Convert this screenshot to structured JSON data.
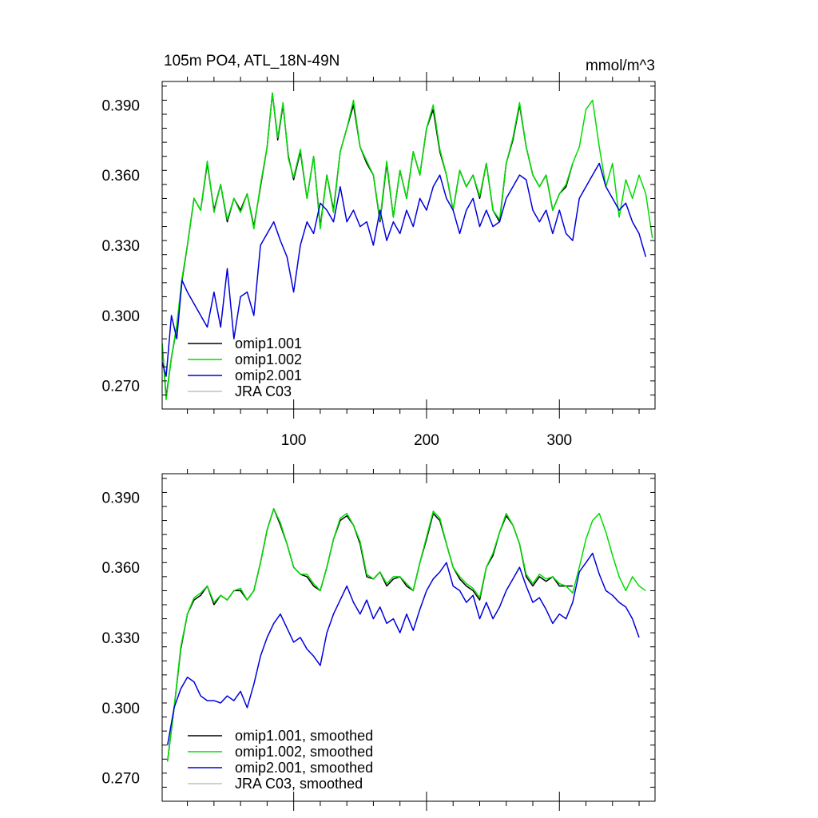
{
  "chart_data": [
    {
      "type": "line",
      "title_left": "105m PO4, ATL_18N-49N",
      "title_right": "mmol/m^3",
      "xlabel": "",
      "ylabel": "",
      "xlim": [
        1,
        372
      ],
      "ylim": [
        0.26,
        0.4
      ],
      "x_ticks": [
        100,
        200,
        300
      ],
      "x_tick_labels": [
        "100",
        "200",
        "300"
      ],
      "y_ticks": [
        0.27,
        0.3,
        0.33,
        0.36,
        0.39
      ],
      "y_tick_labels": [
        "0.270",
        "0.300",
        "0.330",
        "0.360",
        "0.390"
      ],
      "grid": false,
      "legend_position": "bottom-left",
      "series": [
        {
          "name": "omip1.001",
          "color": "#000000",
          "x": [
            1,
            4,
            8,
            12,
            16,
            20,
            25,
            30,
            35,
            40,
            45,
            50,
            55,
            60,
            65,
            70,
            75,
            80,
            84,
            88,
            92,
            96,
            100,
            105,
            110,
            115,
            120,
            125,
            130,
            135,
            140,
            145,
            150,
            155,
            160,
            165,
            170,
            175,
            180,
            185,
            190,
            195,
            200,
            205,
            210,
            215,
            220,
            225,
            230,
            235,
            240,
            245,
            250,
            255,
            260,
            265,
            270,
            275,
            280,
            285,
            290,
            295,
            300,
            305,
            310
          ],
          "y": [
            0.288,
            0.265,
            0.282,
            0.295,
            0.315,
            0.33,
            0.35,
            0.345,
            0.365,
            0.345,
            0.356,
            0.34,
            0.35,
            0.345,
            0.352,
            0.338,
            0.355,
            0.372,
            0.395,
            0.375,
            0.39,
            0.368,
            0.358,
            0.37,
            0.35,
            0.368,
            0.338,
            0.36,
            0.345,
            0.37,
            0.38,
            0.39,
            0.372,
            0.365,
            0.36,
            0.34,
            0.365,
            0.342,
            0.362,
            0.35,
            0.37,
            0.36,
            0.38,
            0.388,
            0.37,
            0.36,
            0.345,
            0.362,
            0.355,
            0.36,
            0.35,
            0.365,
            0.345,
            0.34,
            0.365,
            0.375,
            0.39,
            0.372,
            0.36,
            0.355,
            0.36,
            0.345,
            0.352,
            0.355,
            0.365
          ]
        },
        {
          "name": "omip1.002",
          "color": "#00dd00",
          "x": [
            1,
            4,
            8,
            12,
            16,
            20,
            25,
            30,
            35,
            40,
            45,
            50,
            55,
            60,
            65,
            70,
            75,
            80,
            84,
            88,
            92,
            96,
            100,
            105,
            110,
            115,
            120,
            125,
            130,
            135,
            140,
            145,
            150,
            155,
            160,
            165,
            170,
            175,
            180,
            185,
            190,
            195,
            200,
            205,
            210,
            215,
            220,
            225,
            230,
            235,
            240,
            245,
            250,
            255,
            260,
            265,
            270,
            275,
            280,
            285,
            290,
            295,
            300,
            305,
            310,
            315,
            320,
            325,
            330,
            335,
            340,
            345,
            350,
            355,
            360,
            365,
            370
          ],
          "y": [
            0.288,
            0.264,
            0.282,
            0.296,
            0.316,
            0.33,
            0.35,
            0.345,
            0.366,
            0.344,
            0.356,
            0.341,
            0.35,
            0.344,
            0.352,
            0.337,
            0.356,
            0.372,
            0.395,
            0.376,
            0.391,
            0.367,
            0.359,
            0.371,
            0.35,
            0.368,
            0.337,
            0.36,
            0.344,
            0.37,
            0.38,
            0.392,
            0.372,
            0.366,
            0.36,
            0.341,
            0.366,
            0.342,
            0.362,
            0.35,
            0.37,
            0.36,
            0.38,
            0.39,
            0.371,
            0.36,
            0.345,
            0.362,
            0.355,
            0.36,
            0.351,
            0.365,
            0.345,
            0.341,
            0.365,
            0.376,
            0.391,
            0.372,
            0.36,
            0.355,
            0.36,
            0.345,
            0.352,
            0.356,
            0.365,
            0.372,
            0.388,
            0.392,
            0.372,
            0.355,
            0.365,
            0.342,
            0.358,
            0.35,
            0.36,
            0.352,
            0.333
          ]
        },
        {
          "name": "omip2.001",
          "color": "#0000dd",
          "x": [
            1,
            4,
            8,
            12,
            16,
            20,
            25,
            30,
            35,
            40,
            45,
            50,
            55,
            60,
            65,
            70,
            75,
            80,
            85,
            90,
            95,
            100,
            105,
            110,
            115,
            120,
            125,
            130,
            135,
            140,
            145,
            150,
            155,
            160,
            165,
            170,
            175,
            180,
            185,
            190,
            195,
            200,
            205,
            210,
            215,
            220,
            225,
            230,
            235,
            240,
            245,
            250,
            255,
            260,
            265,
            270,
            275,
            280,
            285,
            290,
            295,
            300,
            305,
            310,
            315,
            320,
            325,
            330,
            335,
            340,
            345,
            350,
            355,
            360,
            365
          ],
          "y": [
            0.28,
            0.274,
            0.3,
            0.29,
            0.315,
            0.31,
            0.305,
            0.3,
            0.295,
            0.31,
            0.295,
            0.32,
            0.29,
            0.308,
            0.31,
            0.3,
            0.33,
            0.335,
            0.34,
            0.332,
            0.325,
            0.31,
            0.33,
            0.34,
            0.335,
            0.348,
            0.345,
            0.34,
            0.355,
            0.34,
            0.345,
            0.338,
            0.34,
            0.33,
            0.345,
            0.332,
            0.34,
            0.335,
            0.345,
            0.338,
            0.35,
            0.345,
            0.355,
            0.36,
            0.35,
            0.345,
            0.335,
            0.345,
            0.35,
            0.338,
            0.345,
            0.338,
            0.34,
            0.35,
            0.355,
            0.36,
            0.358,
            0.345,
            0.34,
            0.345,
            0.335,
            0.345,
            0.335,
            0.332,
            0.35,
            0.355,
            0.36,
            0.365,
            0.355,
            0.35,
            0.345,
            0.348,
            0.34,
            0.335,
            0.325
          ]
        },
        {
          "name": "JRA C03",
          "color": "#c0c0c0",
          "x": [],
          "y": []
        }
      ]
    },
    {
      "type": "line",
      "title_left": "",
      "title_right": "",
      "xlabel": "",
      "ylabel": "",
      "xlim": [
        1,
        372
      ],
      "ylim": [
        0.26,
        0.4
      ],
      "x_ticks": [
        100,
        200,
        300
      ],
      "x_tick_labels": [
        "",
        "",
        ""
      ],
      "y_ticks": [
        0.27,
        0.3,
        0.33,
        0.36,
        0.39
      ],
      "y_tick_labels": [
        "0.270",
        "0.300",
        "0.330",
        "0.360",
        "0.390"
      ],
      "grid": false,
      "legend_position": "bottom-left",
      "series": [
        {
          "name": "omip1.001, smoothed",
          "color": "#000000",
          "x": [
            5,
            10,
            15,
            20,
            25,
            30,
            35,
            40,
            45,
            50,
            55,
            60,
            65,
            70,
            75,
            80,
            85,
            90,
            95,
            100,
            105,
            110,
            115,
            120,
            125,
            130,
            135,
            140,
            145,
            150,
            155,
            160,
            165,
            170,
            175,
            180,
            185,
            190,
            195,
            200,
            205,
            210,
            215,
            220,
            225,
            230,
            235,
            240,
            245,
            250,
            255,
            260,
            265,
            270,
            275,
            280,
            285,
            290,
            295,
            300,
            305,
            310
          ],
          "y": [
            0.277,
            0.3,
            0.325,
            0.34,
            0.346,
            0.348,
            0.352,
            0.344,
            0.348,
            0.346,
            0.35,
            0.35,
            0.346,
            0.35,
            0.362,
            0.376,
            0.385,
            0.378,
            0.37,
            0.36,
            0.357,
            0.356,
            0.352,
            0.35,
            0.36,
            0.372,
            0.38,
            0.382,
            0.378,
            0.37,
            0.356,
            0.355,
            0.358,
            0.352,
            0.355,
            0.356,
            0.352,
            0.35,
            0.362,
            0.372,
            0.383,
            0.38,
            0.37,
            0.36,
            0.355,
            0.352,
            0.35,
            0.346,
            0.36,
            0.365,
            0.375,
            0.382,
            0.378,
            0.37,
            0.356,
            0.352,
            0.356,
            0.354,
            0.356,
            0.352,
            0.352,
            0.352
          ]
        },
        {
          "name": "omip1.002, smoothed",
          "color": "#00dd00",
          "x": [
            5,
            10,
            15,
            20,
            25,
            30,
            35,
            40,
            45,
            50,
            55,
            60,
            65,
            70,
            75,
            80,
            85,
            90,
            95,
            100,
            105,
            110,
            115,
            120,
            125,
            130,
            135,
            140,
            145,
            150,
            155,
            160,
            165,
            170,
            175,
            180,
            185,
            190,
            195,
            200,
            205,
            210,
            215,
            220,
            225,
            230,
            235,
            240,
            245,
            250,
            255,
            260,
            265,
            270,
            275,
            280,
            285,
            290,
            295,
            300,
            305,
            310,
            315,
            320,
            325,
            330,
            335,
            340,
            345,
            350,
            355,
            360,
            365
          ],
          "y": [
            0.277,
            0.3,
            0.326,
            0.34,
            0.347,
            0.349,
            0.352,
            0.345,
            0.348,
            0.346,
            0.35,
            0.351,
            0.346,
            0.35,
            0.362,
            0.376,
            0.385,
            0.379,
            0.37,
            0.36,
            0.357,
            0.357,
            0.353,
            0.35,
            0.36,
            0.372,
            0.381,
            0.383,
            0.378,
            0.371,
            0.357,
            0.355,
            0.358,
            0.353,
            0.356,
            0.356,
            0.353,
            0.35,
            0.362,
            0.373,
            0.384,
            0.381,
            0.37,
            0.36,
            0.356,
            0.353,
            0.351,
            0.347,
            0.36,
            0.366,
            0.375,
            0.383,
            0.378,
            0.37,
            0.357,
            0.353,
            0.357,
            0.355,
            0.356,
            0.353,
            0.352,
            0.349,
            0.36,
            0.372,
            0.38,
            0.383,
            0.375,
            0.365,
            0.356,
            0.35,
            0.356,
            0.352,
            0.35
          ]
        },
        {
          "name": "omip2.001, smoothed",
          "color": "#0000dd",
          "x": [
            5,
            10,
            15,
            20,
            25,
            30,
            35,
            40,
            45,
            50,
            55,
            60,
            65,
            70,
            75,
            80,
            85,
            90,
            95,
            100,
            105,
            110,
            115,
            120,
            125,
            130,
            135,
            140,
            145,
            150,
            155,
            160,
            165,
            170,
            175,
            180,
            185,
            190,
            195,
            200,
            205,
            210,
            215,
            220,
            225,
            230,
            235,
            240,
            245,
            250,
            255,
            260,
            265,
            270,
            275,
            280,
            285,
            290,
            295,
            300,
            305,
            310,
            315,
            320,
            325,
            330,
            335,
            340,
            345,
            350,
            355,
            360
          ],
          "y": [
            0.284,
            0.3,
            0.308,
            0.313,
            0.311,
            0.305,
            0.303,
            0.303,
            0.302,
            0.305,
            0.303,
            0.307,
            0.3,
            0.31,
            0.322,
            0.33,
            0.336,
            0.34,
            0.334,
            0.328,
            0.33,
            0.325,
            0.322,
            0.318,
            0.332,
            0.34,
            0.346,
            0.352,
            0.345,
            0.34,
            0.346,
            0.338,
            0.343,
            0.336,
            0.338,
            0.332,
            0.34,
            0.333,
            0.342,
            0.35,
            0.355,
            0.358,
            0.362,
            0.352,
            0.35,
            0.345,
            0.348,
            0.338,
            0.345,
            0.338,
            0.343,
            0.35,
            0.355,
            0.36,
            0.352,
            0.345,
            0.347,
            0.342,
            0.336,
            0.34,
            0.338,
            0.345,
            0.358,
            0.362,
            0.366,
            0.357,
            0.35,
            0.348,
            0.345,
            0.343,
            0.338,
            0.33
          ]
        },
        {
          "name": "JRA C03, smoothed",
          "color": "#c0c0c0",
          "x": [],
          "y": []
        }
      ]
    }
  ]
}
